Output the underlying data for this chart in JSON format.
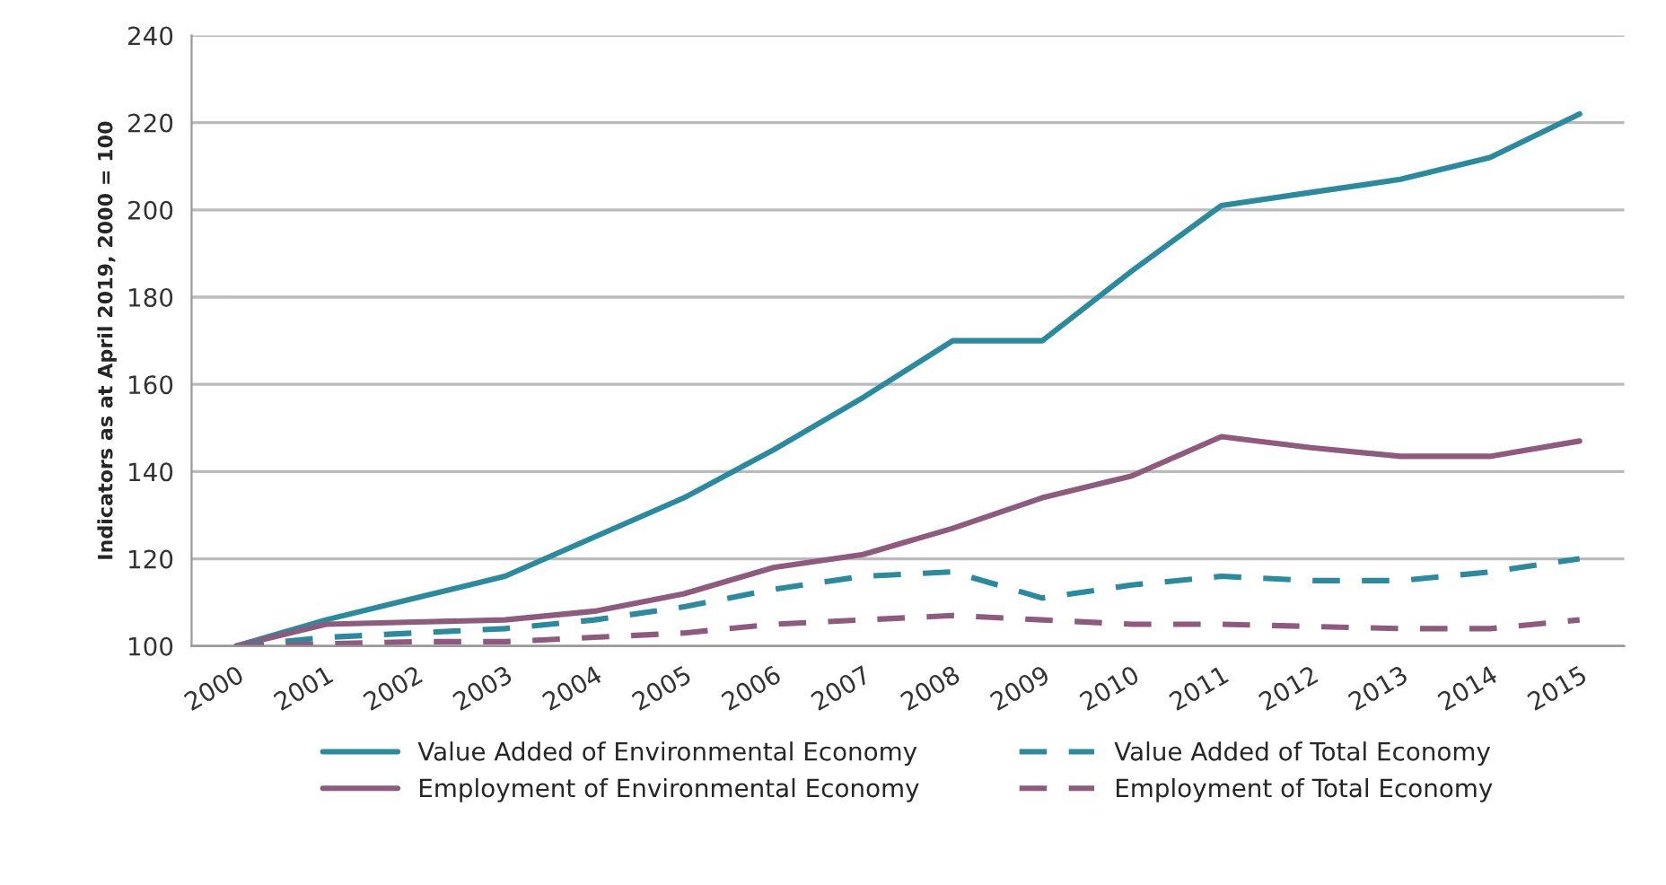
{
  "chart_data": {
    "type": "line",
    "ylabel": "Indicators as at April 2019, 2000 = 100",
    "categories": [
      "2000",
      "2001",
      "2002",
      "2003",
      "2004",
      "2005",
      "2006",
      "2007",
      "2008",
      "2009",
      "2010",
      "2011",
      "2012",
      "2013",
      "2014",
      "2015"
    ],
    "ylim": [
      100,
      240
    ],
    "yticks": [
      100,
      120,
      140,
      160,
      180,
      200,
      220,
      240
    ],
    "grid": "y",
    "legend": "bottom",
    "series": [
      {
        "name": "Value Added of Environmental Economy",
        "color": "#2a8a9e",
        "line_style": "solid",
        "values": [
          100,
          106,
          111,
          116,
          125,
          134,
          145,
          157,
          170,
          170,
          186,
          201,
          204,
          207,
          212,
          222
        ]
      },
      {
        "name": "Employment of Environmental Economy",
        "color": "#8e5a7e",
        "line_style": "solid",
        "values": [
          100,
          105,
          105.5,
          106,
          108,
          112,
          118,
          121,
          127,
          134,
          139,
          148,
          145.5,
          143.5,
          143.5,
          147
        ]
      },
      {
        "name": "Value Added of Total Economy",
        "color": "#2a8a9e",
        "line_style": "dashed",
        "values": [
          100,
          102,
          103,
          104,
          106,
          109,
          113,
          116,
          117,
          111,
          114,
          116,
          115,
          115,
          117,
          120
        ]
      },
      {
        "name": "Employment of Total Economy",
        "color": "#8e5a7e",
        "line_style": "dashed",
        "values": [
          100,
          100.5,
          101,
          101,
          102,
          103,
          105,
          106,
          107,
          106,
          105,
          105,
          104.5,
          104,
          104,
          106
        ]
      }
    ]
  }
}
